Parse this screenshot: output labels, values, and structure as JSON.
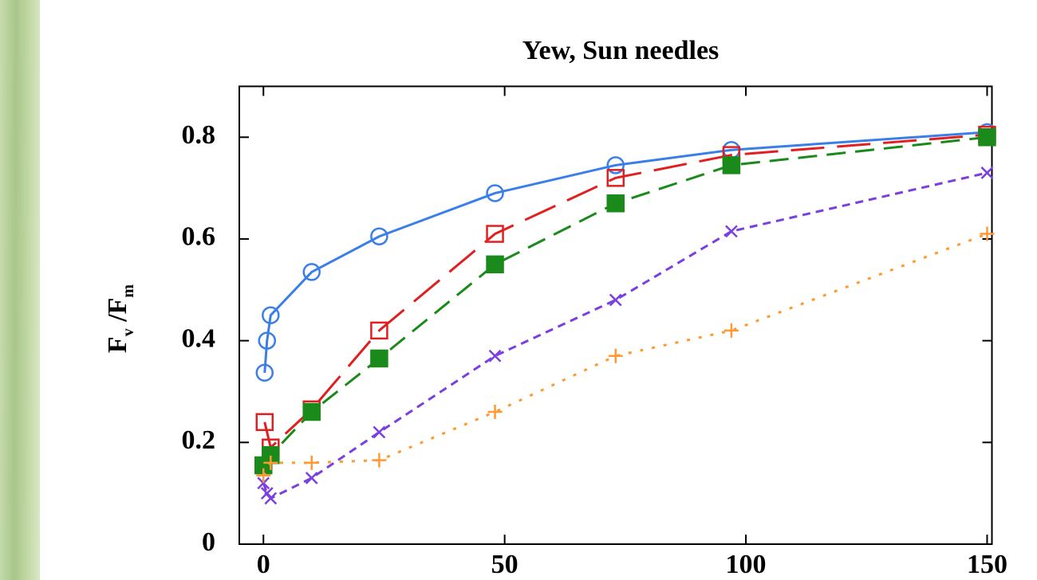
{
  "chart_data": {
    "type": "line",
    "title": "Yew, Sun needles",
    "y_label": {
      "main": "F",
      "sub1": "v",
      "mid": " /F",
      "sub2": "m"
    },
    "xlim": [
      -5,
      151
    ],
    "xticks": [
      0,
      50,
      100,
      150
    ],
    "ylim": [
      0,
      0.9
    ],
    "yticks": [
      0,
      0.2,
      0.4,
      0.6,
      0.8
    ],
    "series": [
      {
        "color": "#3a7ee8",
        "marker": "open-circle",
        "line_style": "solid",
        "x": [
          0.25,
          0.75,
          1.5,
          10,
          24,
          48,
          73,
          97,
          150
        ],
        "values": [
          0.337,
          0.4,
          0.45,
          0.535,
          0.605,
          0.69,
          0.745,
          0.775,
          0.81
        ]
      },
      {
        "color": "#e02020",
        "marker": "open-square",
        "line_style": "long-dash",
        "x": [
          0.25,
          1.5,
          10,
          24,
          48,
          73,
          97,
          150
        ],
        "values": [
          0.24,
          0.19,
          0.265,
          0.42,
          0.61,
          0.72,
          0.765,
          0.805
        ]
      },
      {
        "color": "#1a8a1a",
        "marker": "filled-square",
        "line_style": "dash",
        "x": [
          0,
          1.5,
          10,
          24,
          48,
          73,
          97,
          150
        ],
        "values": [
          0.155,
          0.175,
          0.26,
          0.365,
          0.55,
          0.67,
          0.745,
          0.8
        ]
      },
      {
        "color": "#7b3fe0",
        "marker": "cross",
        "line_style": "short-dash",
        "x": [
          0,
          0.75,
          1.5,
          10,
          24,
          48,
          73,
          97,
          150
        ],
        "values": [
          0.12,
          0.1,
          0.09,
          0.13,
          0.22,
          0.37,
          0.48,
          0.615,
          0.73
        ]
      },
      {
        "color": "#ff9933",
        "marker": "plus",
        "line_style": "dotted",
        "x": [
          0,
          1.5,
          10,
          24,
          48,
          73,
          97,
          150
        ],
        "values": [
          0.135,
          0.16,
          0.16,
          0.165,
          0.26,
          0.37,
          0.42,
          0.61
        ]
      }
    ]
  }
}
